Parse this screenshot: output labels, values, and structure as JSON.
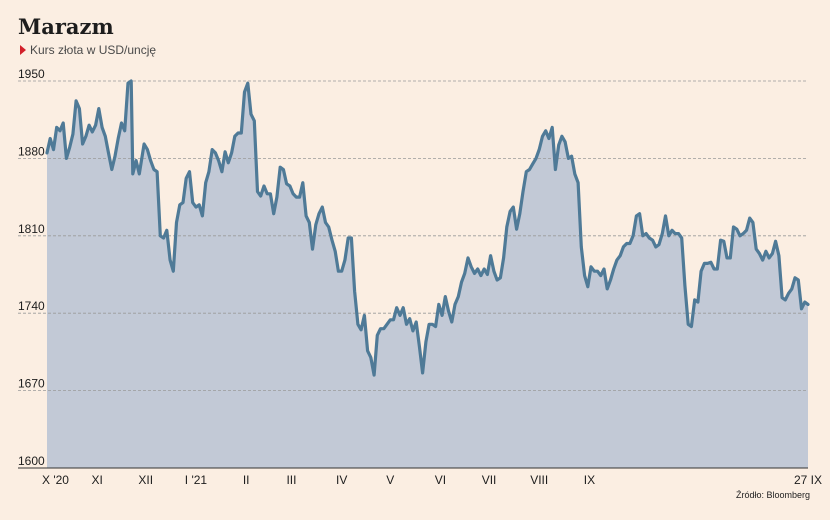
{
  "chart_data": {
    "type": "area",
    "title": "Marazm",
    "subtitle": "Kurs złota w USD/uncję",
    "source": "Źródło: Bloomberg",
    "ylim": [
      1600,
      1950
    ],
    "yticks": [
      1600,
      1670,
      1740,
      1810,
      1880,
      1950
    ],
    "xticks": [
      {
        "label": "X '20",
        "t": 0
      },
      {
        "label": "XI",
        "t": 31
      },
      {
        "label": "XII",
        "t": 61
      },
      {
        "label": "I '21",
        "t": 92
      },
      {
        "label": "II",
        "t": 123
      },
      {
        "label": "III",
        "t": 151
      },
      {
        "label": "IV",
        "t": 182
      },
      {
        "label": "V",
        "t": 212
      },
      {
        "label": "VI",
        "t": 243
      },
      {
        "label": "VII",
        "t": 273
      },
      {
        "label": "VIII",
        "t": 304
      },
      {
        "label": "IX",
        "t": 335
      },
      {
        "label": "27 IX",
        "t": 361
      }
    ],
    "grid": true,
    "colors": {
      "line": "#4f7a97",
      "fill": "#c2c9d6",
      "grid": "#9a9a9a",
      "axis": "#333333"
    },
    "series": [
      {
        "points": [
          [
            0,
            1885
          ],
          [
            2,
            1898
          ],
          [
            4,
            1888
          ],
          [
            6,
            1908
          ],
          [
            8,
            1905
          ],
          [
            10,
            1912
          ],
          [
            12,
            1880
          ],
          [
            14,
            1890
          ],
          [
            16,
            1902
          ],
          [
            18,
            1932
          ],
          [
            20,
            1925
          ],
          [
            22,
            1893
          ],
          [
            24,
            1900
          ],
          [
            26,
            1910
          ],
          [
            28,
            1904
          ],
          [
            30,
            1910
          ],
          [
            32,
            1925
          ],
          [
            34,
            1908
          ],
          [
            36,
            1900
          ],
          [
            38,
            1885
          ],
          [
            40,
            1870
          ],
          [
            42,
            1882
          ],
          [
            44,
            1898
          ],
          [
            46,
            1912
          ],
          [
            48,
            1905
          ],
          [
            50,
            1948
          ],
          [
            52,
            1950
          ],
          [
            53,
            1866
          ],
          [
            55,
            1878
          ],
          [
            57,
            1866
          ],
          [
            60,
            1893
          ],
          [
            62,
            1888
          ],
          [
            64,
            1878
          ],
          [
            66,
            1870
          ],
          [
            68,
            1868
          ],
          [
            70,
            1810
          ],
          [
            72,
            1808
          ],
          [
            74,
            1815
          ],
          [
            76,
            1788
          ],
          [
            78,
            1778
          ],
          [
            80,
            1822
          ],
          [
            82,
            1838
          ],
          [
            84,
            1840
          ],
          [
            86,
            1862
          ],
          [
            88,
            1868
          ],
          [
            90,
            1840
          ],
          [
            92,
            1836
          ],
          [
            94,
            1838
          ],
          [
            96,
            1828
          ],
          [
            98,
            1858
          ],
          [
            100,
            1868
          ],
          [
            102,
            1888
          ],
          [
            104,
            1885
          ],
          [
            106,
            1878
          ],
          [
            108,
            1868
          ],
          [
            110,
            1886
          ],
          [
            112,
            1876
          ],
          [
            114,
            1885
          ],
          [
            116,
            1900
          ],
          [
            118,
            1903
          ],
          [
            120,
            1903
          ],
          [
            122,
            1940
          ],
          [
            124,
            1948
          ],
          [
            126,
            1920
          ],
          [
            128,
            1914
          ],
          [
            130,
            1850
          ],
          [
            132,
            1846
          ],
          [
            134,
            1855
          ],
          [
            136,
            1848
          ],
          [
            138,
            1848
          ],
          [
            140,
            1830
          ],
          [
            142,
            1845
          ],
          [
            144,
            1872
          ],
          [
            146,
            1870
          ],
          [
            148,
            1857
          ],
          [
            150,
            1855
          ],
          [
            152,
            1848
          ],
          [
            154,
            1845
          ],
          [
            156,
            1845
          ],
          [
            158,
            1858
          ],
          [
            160,
            1828
          ],
          [
            162,
            1822
          ],
          [
            164,
            1798
          ],
          [
            166,
            1820
          ],
          [
            168,
            1830
          ],
          [
            170,
            1836
          ],
          [
            172,
            1822
          ],
          [
            174,
            1818
          ],
          [
            176,
            1806
          ],
          [
            178,
            1796
          ],
          [
            180,
            1778
          ],
          [
            182,
            1778
          ],
          [
            184,
            1788
          ],
          [
            186,
            1808
          ],
          [
            188,
            1808
          ],
          [
            190,
            1760
          ],
          [
            192,
            1730
          ],
          [
            194,
            1725
          ],
          [
            196,
            1738
          ],
          [
            198,
            1706
          ],
          [
            200,
            1700
          ],
          [
            202,
            1684
          ],
          [
            204,
            1720
          ],
          [
            206,
            1726
          ],
          [
            208,
            1726
          ],
          [
            210,
            1730
          ],
          [
            212,
            1734
          ],
          [
            214,
            1734
          ],
          [
            216,
            1745
          ],
          [
            218,
            1738
          ],
          [
            220,
            1745
          ],
          [
            222,
            1730
          ],
          [
            224,
            1735
          ],
          [
            226,
            1724
          ],
          [
            228,
            1732
          ],
          [
            230,
            1710
          ],
          [
            232,
            1686
          ],
          [
            234,
            1714
          ],
          [
            236,
            1730
          ],
          [
            238,
            1730
          ],
          [
            240,
            1728
          ],
          [
            242,
            1748
          ],
          [
            244,
            1738
          ],
          [
            246,
            1755
          ],
          [
            248,
            1742
          ],
          [
            250,
            1732
          ],
          [
            252,
            1748
          ],
          [
            254,
            1755
          ],
          [
            256,
            1768
          ],
          [
            258,
            1776
          ],
          [
            260,
            1790
          ],
          [
            262,
            1782
          ],
          [
            264,
            1776
          ],
          [
            266,
            1780
          ],
          [
            268,
            1774
          ],
          [
            270,
            1780
          ],
          [
            272,
            1775
          ],
          [
            274,
            1792
          ],
          [
            276,
            1778
          ],
          [
            278,
            1770
          ],
          [
            280,
            1772
          ],
          [
            282,
            1790
          ],
          [
            284,
            1818
          ],
          [
            286,
            1832
          ],
          [
            288,
            1836
          ],
          [
            290,
            1816
          ],
          [
            292,
            1830
          ],
          [
            294,
            1850
          ],
          [
            296,
            1868
          ],
          [
            298,
            1870
          ],
          [
            300,
            1875
          ],
          [
            302,
            1880
          ],
          [
            304,
            1888
          ],
          [
            306,
            1900
          ],
          [
            308,
            1905
          ],
          [
            310,
            1898
          ],
          [
            312,
            1908
          ],
          [
            314,
            1870
          ],
          [
            316,
            1892
          ],
          [
            318,
            1900
          ],
          [
            320,
            1895
          ],
          [
            322,
            1880
          ],
          [
            324,
            1882
          ],
          [
            326,
            1866
          ],
          [
            328,
            1858
          ],
          [
            330,
            1800
          ],
          [
            332,
            1774
          ],
          [
            334,
            1764
          ],
          [
            336,
            1782
          ],
          [
            338,
            1778
          ],
          [
            340,
            1778
          ],
          [
            342,
            1774
          ],
          [
            344,
            1780
          ],
          [
            346,
            1762
          ],
          [
            348,
            1770
          ],
          [
            350,
            1780
          ],
          [
            352,
            1788
          ],
          [
            354,
            1792
          ],
          [
            356,
            1800
          ],
          [
            358,
            1803
          ],
          [
            360,
            1803
          ],
          [
            362,
            1810
          ],
          [
            364,
            1828
          ],
          [
            366,
            1830
          ],
          [
            368,
            1810
          ],
          [
            370,
            1812
          ],
          [
            372,
            1808
          ],
          [
            374,
            1806
          ],
          [
            376,
            1800
          ],
          [
            378,
            1802
          ],
          [
            380,
            1812
          ],
          [
            382,
            1828
          ],
          [
            384,
            1810
          ],
          [
            386,
            1815
          ],
          [
            388,
            1812
          ],
          [
            390,
            1812
          ],
          [
            392,
            1808
          ],
          [
            394,
            1765
          ],
          [
            396,
            1730
          ],
          [
            398,
            1728
          ],
          [
            400,
            1752
          ],
          [
            402,
            1750
          ],
          [
            404,
            1778
          ],
          [
            406,
            1785
          ],
          [
            408,
            1785
          ],
          [
            410,
            1786
          ],
          [
            412,
            1780
          ],
          [
            414,
            1780
          ],
          [
            416,
            1806
          ],
          [
            418,
            1805
          ],
          [
            420,
            1790
          ],
          [
            422,
            1790
          ],
          [
            424,
            1818
          ],
          [
            426,
            1816
          ],
          [
            428,
            1810
          ],
          [
            430,
            1812
          ],
          [
            432,
            1815
          ],
          [
            434,
            1826
          ],
          [
            436,
            1822
          ],
          [
            438,
            1798
          ],
          [
            440,
            1794
          ],
          [
            442,
            1788
          ],
          [
            444,
            1796
          ],
          [
            446,
            1790
          ],
          [
            448,
            1794
          ],
          [
            450,
            1805
          ],
          [
            452,
            1792
          ],
          [
            454,
            1754
          ],
          [
            456,
            1752
          ],
          [
            458,
            1758
          ],
          [
            460,
            1762
          ],
          [
            462,
            1772
          ],
          [
            464,
            1770
          ],
          [
            466,
            1744
          ],
          [
            468,
            1750
          ],
          [
            470,
            1748
          ]
        ]
      }
    ]
  }
}
